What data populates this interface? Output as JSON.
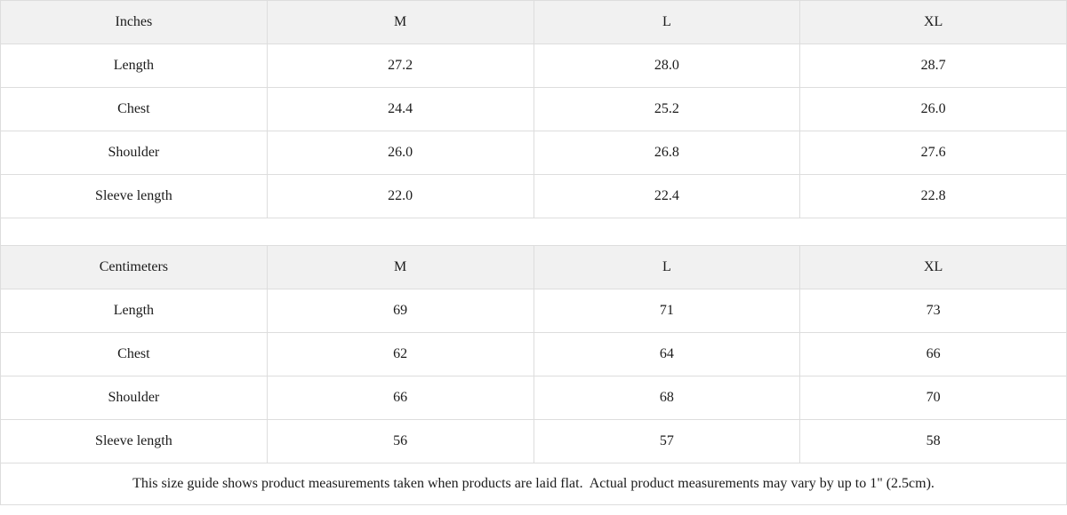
{
  "colors": {
    "header_background": "#f1f1f1",
    "label_column_background": "#f1f1f1",
    "cell_background": "#ffffff",
    "border": "#dddddd",
    "text": "#1b1b1b"
  },
  "tables": [
    {
      "unit_label": "Inches",
      "sizes": [
        "M",
        "L",
        "XL"
      ],
      "rows": [
        {
          "label": "Length",
          "values": [
            "27.2",
            "28.0",
            "28.7"
          ]
        },
        {
          "label": "Chest",
          "values": [
            "24.4",
            "25.2",
            "26.0"
          ]
        },
        {
          "label": "Shoulder",
          "values": [
            "26.0",
            "26.8",
            "27.6"
          ]
        },
        {
          "label": "Sleeve length",
          "values": [
            "22.0",
            "22.4",
            "22.8"
          ]
        }
      ]
    },
    {
      "unit_label": "Centimeters",
      "sizes": [
        "M",
        "L",
        "XL"
      ],
      "rows": [
        {
          "label": "Length",
          "values": [
            "69",
            "71",
            "73"
          ]
        },
        {
          "label": "Chest",
          "values": [
            "62",
            "64",
            "66"
          ]
        },
        {
          "label": "Shoulder",
          "values": [
            "66",
            "68",
            "70"
          ]
        },
        {
          "label": "Sleeve length",
          "values": [
            "56",
            "57",
            "58"
          ]
        }
      ]
    }
  ],
  "footnote": "This size guide shows product measurements taken when products are laid flat.  Actual product measurements may vary by up to 1\" (2.5cm)."
}
